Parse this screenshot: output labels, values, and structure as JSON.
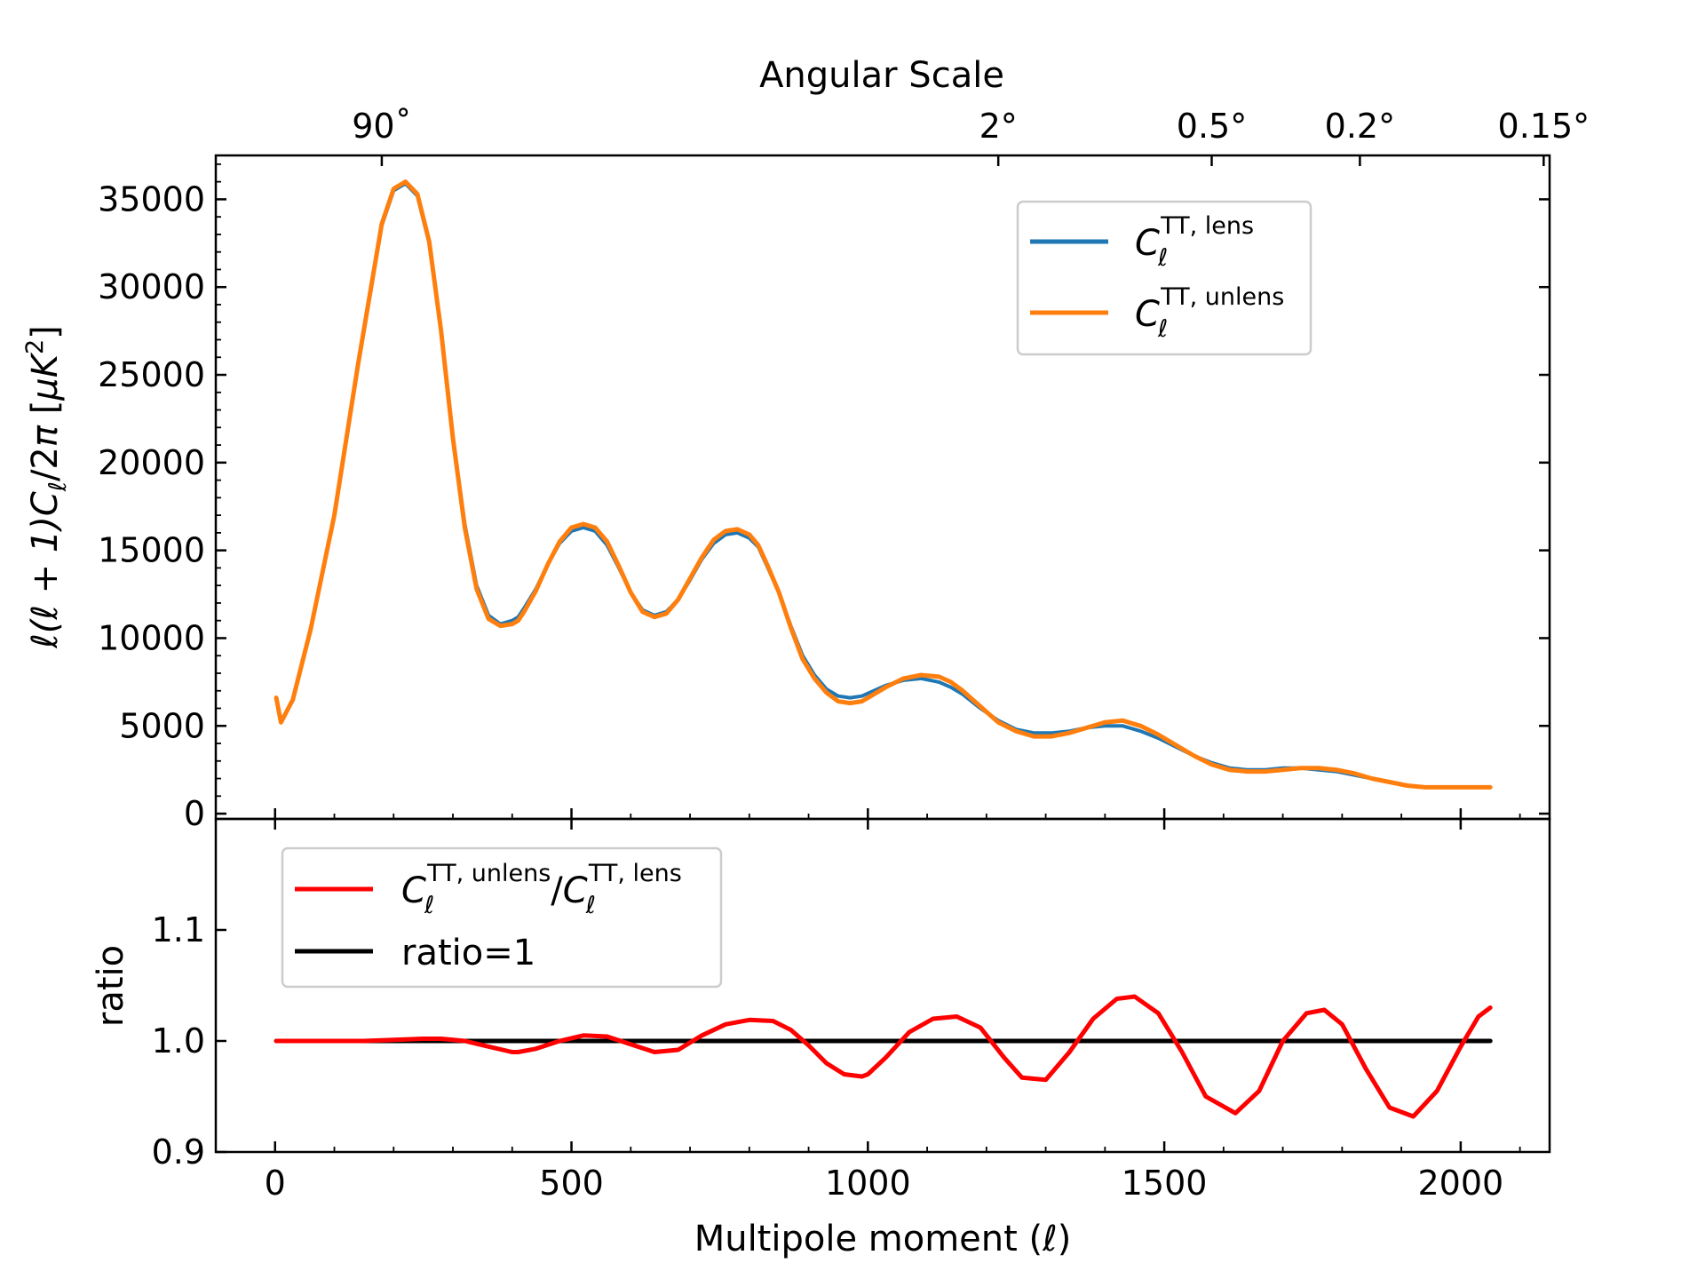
{
  "chart_data": [
    {
      "type": "line",
      "panel": "top",
      "top_axis_title": "Angular Scale",
      "top_tick_labels": [
        "90˚",
        "2°",
        "0.5°",
        "0.2°",
        "0.15°"
      ],
      "top_tick_multipoles": [
        180,
        1220,
        1580,
        1830,
        2140
      ],
      "ylabel_parts": [
        "ℓ(ℓ + 1)",
        "C",
        "ℓ",
        "/2",
        "π",
        " [",
        "μK",
        "2",
        "]"
      ],
      "yticks": [
        0,
        5000,
        10000,
        15000,
        20000,
        25000,
        30000,
        35000
      ],
      "ytick_labels": [
        "0",
        "5000",
        "10000",
        "15000",
        "20000",
        "25000",
        "30000",
        "35000"
      ],
      "xlim": [
        -100,
        2150
      ],
      "ylim": [
        -300,
        37500
      ],
      "legend_position": "upper-right",
      "series": [
        {
          "name_parts": [
            "C",
            "ℓ",
            "TT, lens"
          ],
          "color": "#1f77b4",
          "x": [
            2,
            10,
            30,
            60,
            100,
            140,
            180,
            200,
            220,
            240,
            260,
            280,
            300,
            320,
            340,
            360,
            380,
            400,
            410,
            420,
            440,
            460,
            480,
            500,
            520,
            540,
            560,
            580,
            600,
            620,
            640,
            660,
            680,
            700,
            720,
            740,
            760,
            780,
            800,
            815,
            830,
            850,
            870,
            890,
            910,
            930,
            950,
            970,
            990,
            1010,
            1030,
            1060,
            1090,
            1120,
            1140,
            1160,
            1190,
            1220,
            1250,
            1280,
            1310,
            1340,
            1370,
            1400,
            1430,
            1460,
            1490,
            1520,
            1550,
            1580,
            1610,
            1640,
            1670,
            1700,
            1730,
            1760,
            1790,
            1820,
            1850,
            1880,
            1910,
            1940,
            1970,
            2000,
            2030,
            2050
          ],
          "y": [
            6600,
            5200,
            6500,
            10500,
            17000,
            25500,
            33500,
            35500,
            35900,
            35200,
            32500,
            27500,
            21500,
            16500,
            13000,
            11300,
            10800,
            11000,
            11200,
            11700,
            12800,
            14200,
            15400,
            16100,
            16300,
            16100,
            15300,
            14000,
            12600,
            11600,
            11300,
            11500,
            12200,
            13300,
            14500,
            15400,
            15900,
            16000,
            15700,
            15200,
            14100,
            12600,
            10700,
            9000,
            7900,
            7100,
            6700,
            6600,
            6700,
            7000,
            7300,
            7600,
            7700,
            7500,
            7200,
            6800,
            6000,
            5300,
            4800,
            4600,
            4600,
            4700,
            4900,
            5000,
            5000,
            4700,
            4300,
            3800,
            3300,
            2900,
            2600,
            2500,
            2500,
            2600,
            2600,
            2500,
            2400,
            2200,
            2000,
            1800,
            1600,
            1500,
            1500,
            1500,
            1500,
            1500
          ]
        },
        {
          "name_parts": [
            "C",
            "ℓ",
            "TT, unlens"
          ],
          "color": "#ff7f0e",
          "x": [
            2,
            10,
            30,
            60,
            100,
            140,
            180,
            200,
            220,
            240,
            260,
            280,
            300,
            320,
            340,
            360,
            380,
            400,
            410,
            420,
            440,
            460,
            480,
            500,
            520,
            540,
            560,
            580,
            600,
            620,
            640,
            660,
            680,
            700,
            720,
            740,
            760,
            780,
            800,
            815,
            830,
            850,
            870,
            890,
            910,
            930,
            950,
            970,
            990,
            1010,
            1030,
            1060,
            1090,
            1120,
            1140,
            1160,
            1190,
            1220,
            1250,
            1280,
            1310,
            1340,
            1370,
            1400,
            1430,
            1460,
            1490,
            1520,
            1550,
            1580,
            1610,
            1640,
            1670,
            1700,
            1730,
            1760,
            1790,
            1820,
            1850,
            1880,
            1910,
            1940,
            1970,
            2000,
            2030,
            2050
          ],
          "y": [
            6600,
            5200,
            6500,
            10500,
            17000,
            25600,
            33600,
            35600,
            36000,
            35300,
            32600,
            27500,
            21400,
            16300,
            12800,
            11100,
            10700,
            10800,
            11000,
            11500,
            12700,
            14200,
            15500,
            16300,
            16500,
            16300,
            15500,
            14100,
            12600,
            11500,
            11200,
            11400,
            12200,
            13400,
            14600,
            15600,
            16100,
            16200,
            15900,
            15300,
            14200,
            12600,
            10600,
            8800,
            7700,
            6900,
            6400,
            6300,
            6400,
            6800,
            7200,
            7700,
            7900,
            7800,
            7500,
            7000,
            6100,
            5200,
            4700,
            4400,
            4400,
            4600,
            4900,
            5200,
            5300,
            5000,
            4500,
            3900,
            3300,
            2800,
            2500,
            2400,
            2400,
            2500,
            2600,
            2600,
            2500,
            2300,
            2000,
            1800,
            1600,
            1500,
            1500,
            1500,
            1500,
            1500
          ]
        }
      ]
    },
    {
      "type": "line",
      "panel": "bottom",
      "xlabel_parts": [
        "Multipole moment (",
        "ℓ",
        ")"
      ],
      "ylabel": "ratio",
      "xticks": [
        0,
        500,
        1000,
        1500,
        2000
      ],
      "xtick_labels": [
        "0",
        "500",
        "1000",
        "1500",
        "2000"
      ],
      "yticks": [
        0.9,
        1.0,
        1.1
      ],
      "ytick_labels": [
        "0.9",
        "1.0",
        "1.1"
      ],
      "xlim": [
        -100,
        2150
      ],
      "ylim": [
        0.9,
        1.2
      ],
      "legend_position": "upper-left",
      "series": [
        {
          "name_parts": [
            "C",
            "ℓ",
            "TT, unlens",
            "/",
            "C",
            "ℓ",
            "TT, lens"
          ],
          "color": "#ff0000",
          "x": [
            2,
            50,
            100,
            150,
            200,
            250,
            280,
            320,
            360,
            400,
            410,
            440,
            480,
            520,
            560,
            600,
            640,
            680,
            720,
            760,
            800,
            840,
            870,
            900,
            930,
            960,
            990,
            1000,
            1030,
            1070,
            1110,
            1150,
            1190,
            1230,
            1260,
            1300,
            1340,
            1380,
            1420,
            1450,
            1490,
            1530,
            1570,
            1620,
            1660,
            1700,
            1740,
            1770,
            1800,
            1840,
            1880,
            1920,
            1960,
            2000,
            2030,
            2050
          ],
          "y": [
            1.0,
            1.0,
            1.0,
            1.0,
            1.001,
            1.002,
            1.002,
            1.0,
            0.995,
            0.99,
            0.99,
            0.993,
            1.0,
            1.005,
            1.004,
            0.997,
            0.99,
            0.992,
            1.005,
            1.015,
            1.019,
            1.018,
            1.01,
            0.996,
            0.98,
            0.97,
            0.968,
            0.97,
            0.985,
            1.008,
            1.02,
            1.022,
            1.012,
            0.985,
            0.967,
            0.965,
            0.99,
            1.02,
            1.038,
            1.04,
            1.025,
            0.99,
            0.95,
            0.935,
            0.955,
            1.0,
            1.025,
            1.028,
            1.015,
            0.975,
            0.94,
            0.932,
            0.955,
            0.995,
            1.022,
            1.03
          ]
        },
        {
          "name": "ratio=1",
          "color": "#000000",
          "x": [
            2,
            2050
          ],
          "y": [
            1.0,
            1.0
          ]
        }
      ]
    }
  ]
}
